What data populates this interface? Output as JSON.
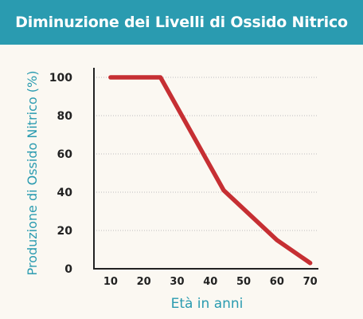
{
  "chart_data": {
    "type": "line",
    "title": "Diminuzione dei Livelli di Ossido Nitrico",
    "xlabel": "Età in anni",
    "ylabel": "Produzione di Ossido Nitrico (%)",
    "xlim": [
      5,
      72
    ],
    "ylim": [
      0,
      100
    ],
    "x_ticks": [
      10,
      20,
      30,
      40,
      50,
      60,
      70
    ],
    "y_ticks": [
      0,
      20,
      40,
      60,
      80,
      100
    ],
    "grid": "horizontal-dotted",
    "series": [
      {
        "x": [
          10,
          25,
          44,
          60,
          70
        ],
        "y": [
          100,
          100,
          41,
          15,
          3
        ],
        "color": "#c62f33"
      }
    ]
  },
  "colors": {
    "header_bg": "#2a9bb0",
    "accent_text": "#2a9bb0",
    "background": "#fbf8f2"
  }
}
